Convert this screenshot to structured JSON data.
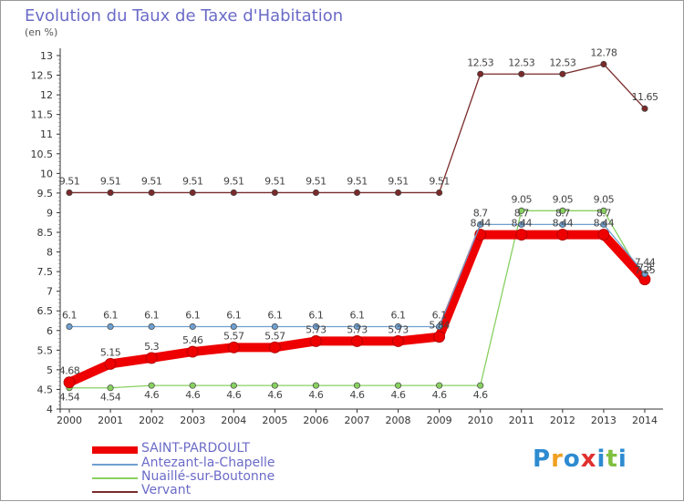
{
  "header": {
    "title": "Evolution du Taux de Taxe d'Habitation",
    "unit": "(en %)"
  },
  "chart_data": {
    "type": "line",
    "title": "Evolution du Taux de Taxe d'Habitation",
    "ylabel": "(en %)",
    "xlabel": "",
    "x": [
      "2000",
      "2001",
      "2002",
      "2003",
      "2004",
      "2005",
      "2006",
      "2007",
      "2008",
      "2009",
      "2010",
      "2011",
      "2012",
      "2013",
      "2014"
    ],
    "ylim": [
      4,
      13
    ],
    "yticks": [
      "4",
      "4.5",
      "5",
      "5.5",
      "6",
      "6.5",
      "7",
      "7.5",
      "8",
      "8.5",
      "9",
      "9.5",
      "10",
      "10.5",
      "11",
      "11.5",
      "12",
      "12.5",
      "13"
    ],
    "grid": false,
    "legend_position": "bottom-left",
    "series": [
      {
        "name": "SAINT-PARDOULT",
        "color": "#ee0000",
        "values": [
          4.68,
          5.15,
          5.3,
          5.46,
          5.57,
          5.57,
          5.73,
          5.73,
          5.73,
          5.84,
          8.44,
          8.44,
          8.44,
          8.44,
          7.3
        ],
        "labels": [
          "4.68",
          "5.15",
          "5.3",
          "5.46",
          "5.57",
          "5.57",
          "5.73",
          "5.73",
          "5.73",
          "5.84",
          "8.44",
          "8.44",
          "8.44",
          "8.44",
          "7.3"
        ]
      },
      {
        "name": "Antezant-la-Chapelle",
        "color": "#6fa0d0",
        "values": [
          6.1,
          6.1,
          6.1,
          6.1,
          6.1,
          6.1,
          6.1,
          6.1,
          6.1,
          6.1,
          8.7,
          8.7,
          8.7,
          8.7,
          7.44
        ],
        "labels": [
          "6.1",
          "6.1",
          "6.1",
          "6.1",
          "6.1",
          "6.1",
          "6.1",
          "6.1",
          "6.1",
          "6.1",
          "8.7",
          "8.7",
          "8.7",
          "8.7",
          "7.44"
        ]
      },
      {
        "name": "Nuaillé-sur-Boutonne",
        "color": "#88d060",
        "values": [
          4.54,
          4.54,
          4.6,
          4.6,
          4.6,
          4.6,
          4.6,
          4.6,
          4.6,
          4.6,
          4.6,
          9.05,
          9.05,
          9.05,
          7.25
        ],
        "labels": [
          "4.54",
          "4.54",
          "4.6",
          "4.6",
          "4.6",
          "4.6",
          "4.6",
          "4.6",
          "4.6",
          "4.6",
          "4.6",
          "9.05",
          "9.05",
          "9.05",
          "7.25"
        ]
      },
      {
        "name": "Vervant",
        "color": "#7a2a2a",
        "values": [
          9.51,
          9.51,
          9.51,
          9.51,
          9.51,
          9.51,
          9.51,
          9.51,
          9.51,
          9.51,
          12.53,
          12.53,
          12.53,
          12.78,
          11.65
        ],
        "labels": [
          "9.51",
          "9.51",
          "9.51",
          "9.51",
          "9.51",
          "9.51",
          "9.51",
          "9.51",
          "9.51",
          "9.51",
          "12.53",
          "12.53",
          "12.53",
          "12.78",
          "11.65"
        ]
      }
    ]
  },
  "legend": {
    "items": [
      {
        "label": "SAINT-PARDOULT",
        "color": "#ee0000"
      },
      {
        "label": "Antezant-la-Chapelle",
        "color": "#6fa0d0"
      },
      {
        "label": "Nuaillé-sur-Boutonne",
        "color": "#88d060"
      },
      {
        "label": "Vervant",
        "color": "#7a2a2a"
      }
    ]
  },
  "logo": {
    "letters": [
      "P",
      "r",
      "o",
      "x",
      "i",
      "t",
      "i"
    ],
    "colors": [
      "#2e8bd0",
      "#f0a020",
      "#2e8bd0",
      "#e03030",
      "#2e8bd0",
      "#80c040",
      "#2e8bd0"
    ]
  }
}
